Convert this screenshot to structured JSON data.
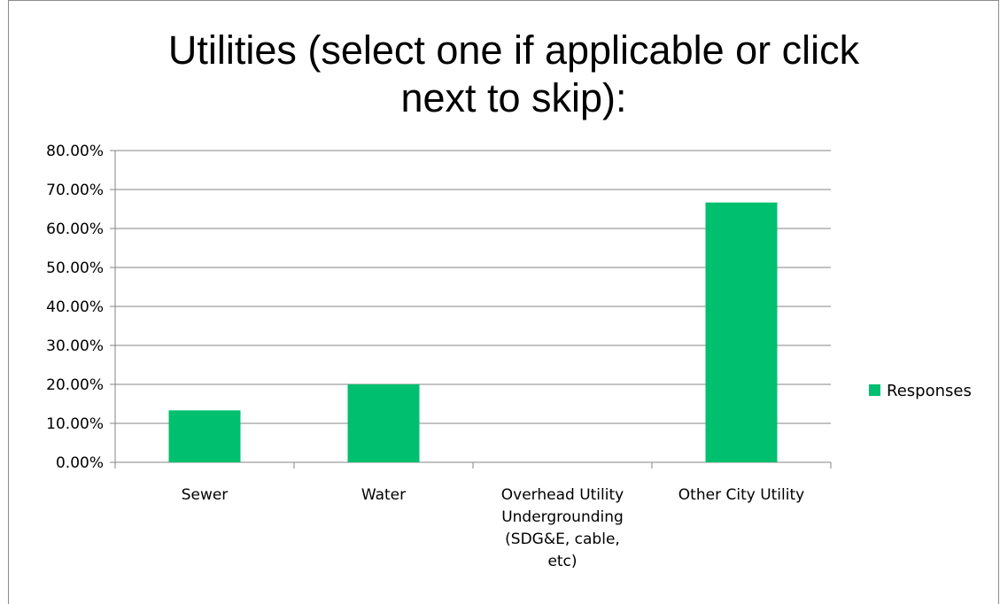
{
  "chart_data": {
    "type": "bar",
    "title": "Utilities (select one if applicable or click next to skip):",
    "title_lines": [
      "Utilities (select one if applicable or click",
      "next to skip):"
    ],
    "categories": [
      "Sewer",
      "Water",
      "Overhead Utility Undergrounding (SDG&E, cable, etc)",
      "Other City Utility"
    ],
    "category_lines": [
      [
        "Sewer"
      ],
      [
        "Water"
      ],
      [
        "Overhead Utility",
        "Undergrounding",
        "(SDG&E, cable,",
        "etc)"
      ],
      [
        "Other City Utility"
      ]
    ],
    "series": [
      {
        "name": "Responses",
        "values": [
          13.33,
          20.0,
          0.0,
          66.67
        ]
      }
    ],
    "ylim": [
      0,
      80
    ],
    "yticks": [
      "0.00%",
      "10.00%",
      "20.00%",
      "30.00%",
      "40.00%",
      "50.00%",
      "60.00%",
      "70.00%",
      "80.00%"
    ],
    "grid": true,
    "legend_position": "right",
    "colors": {
      "bar": "#00bf6f",
      "grid": "#868686"
    }
  }
}
